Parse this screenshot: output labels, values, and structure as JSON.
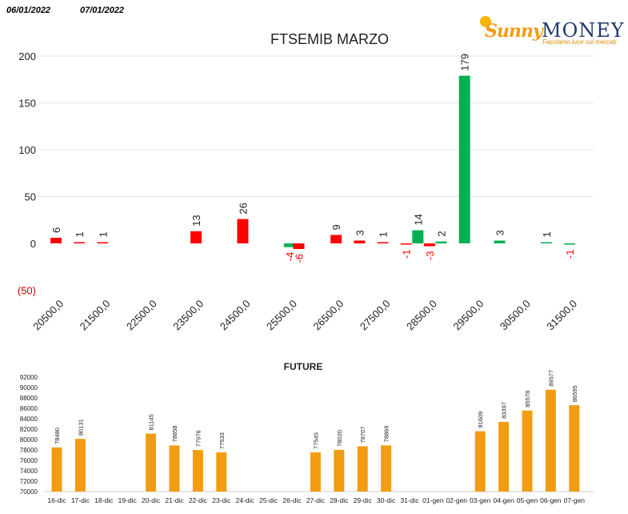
{
  "header": {
    "date_from": "06/01/2022",
    "date_to": "07/01/2022"
  },
  "logo": {
    "brand_a": "Sunny",
    "brand_b": "MONEY",
    "tagline": "Facciamo luce sui mercati"
  },
  "colors": {
    "positive": "#00b050",
    "negative": "#ff0000",
    "future": "#f39c12"
  },
  "chart_data": [
    {
      "type": "bar",
      "title": "FTSEMIB MARZO",
      "ylim": [
        -50,
        200
      ],
      "yticks": [
        "(50)",
        "0",
        "50",
        "100",
        "150",
        "200"
      ],
      "xtick_labels": [
        "20500,0",
        "21500,0",
        "22500,0",
        "23500,0",
        "24500,0",
        "25500,0",
        "26500,0",
        "27500,0",
        "28500,0",
        "29500,0",
        "30500,0",
        "31500,0"
      ],
      "grid": true,
      "series": [
        {
          "values": [
            {
              "x": 20500,
              "y": 6,
              "color": "red"
            },
            {
              "x": 21000,
              "y": 1,
              "color": "red"
            },
            {
              "x": 21500,
              "y": 1,
              "color": "red"
            },
            {
              "x": 23500,
              "y": 13,
              "color": "red"
            },
            {
              "x": 24500,
              "y": 26,
              "color": "red"
            },
            {
              "x": 25500,
              "y": -4,
              "color": "green"
            },
            {
              "x": 25700,
              "y": -6,
              "color": "red"
            },
            {
              "x": 26500,
              "y": 9,
              "color": "red"
            },
            {
              "x": 27000,
              "y": 3,
              "color": "red"
            },
            {
              "x": 27500,
              "y": 1,
              "color": "red"
            },
            {
              "x": 28000,
              "y": -1,
              "color": "red"
            },
            {
              "x": 28250,
              "y": 14,
              "color": "green"
            },
            {
              "x": 28500,
              "y": -3,
              "color": "red"
            },
            {
              "x": 28750,
              "y": 2,
              "color": "green"
            },
            {
              "x": 29250,
              "y": 179,
              "color": "green"
            },
            {
              "x": 30000,
              "y": 3,
              "color": "green"
            },
            {
              "x": 31000,
              "y": 1,
              "color": "green"
            },
            {
              "x": 31500,
              "y": -1,
              "color": "green"
            }
          ]
        }
      ]
    },
    {
      "type": "bar",
      "title": "FUTURE",
      "ylim": [
        70000,
        92000
      ],
      "yticks": [
        "70000",
        "72000",
        "74000",
        "76000",
        "78000",
        "80000",
        "82000",
        "84000",
        "86000",
        "88000",
        "90000",
        "92000"
      ],
      "categories": [
        "16-dic",
        "17-dic",
        "18-dic",
        "19-dic",
        "20-dic",
        "21-dic",
        "22-dic",
        "23-dic",
        "24-dic",
        "25-dic",
        "26-dic",
        "27-dic",
        "28-dic",
        "29-dic",
        "30-dic",
        "31-dic",
        "01-gen",
        "02-gen",
        "03-gen",
        "04-gen",
        "05-gen",
        "06-gen",
        "07-gen"
      ],
      "values": [
        78480,
        80131,
        null,
        null,
        81145,
        78858,
        77976,
        77533,
        null,
        null,
        null,
        77545,
        78020,
        78707,
        78869,
        null,
        null,
        null,
        81609,
        83397,
        85578,
        89577,
        86595
      ]
    }
  ]
}
